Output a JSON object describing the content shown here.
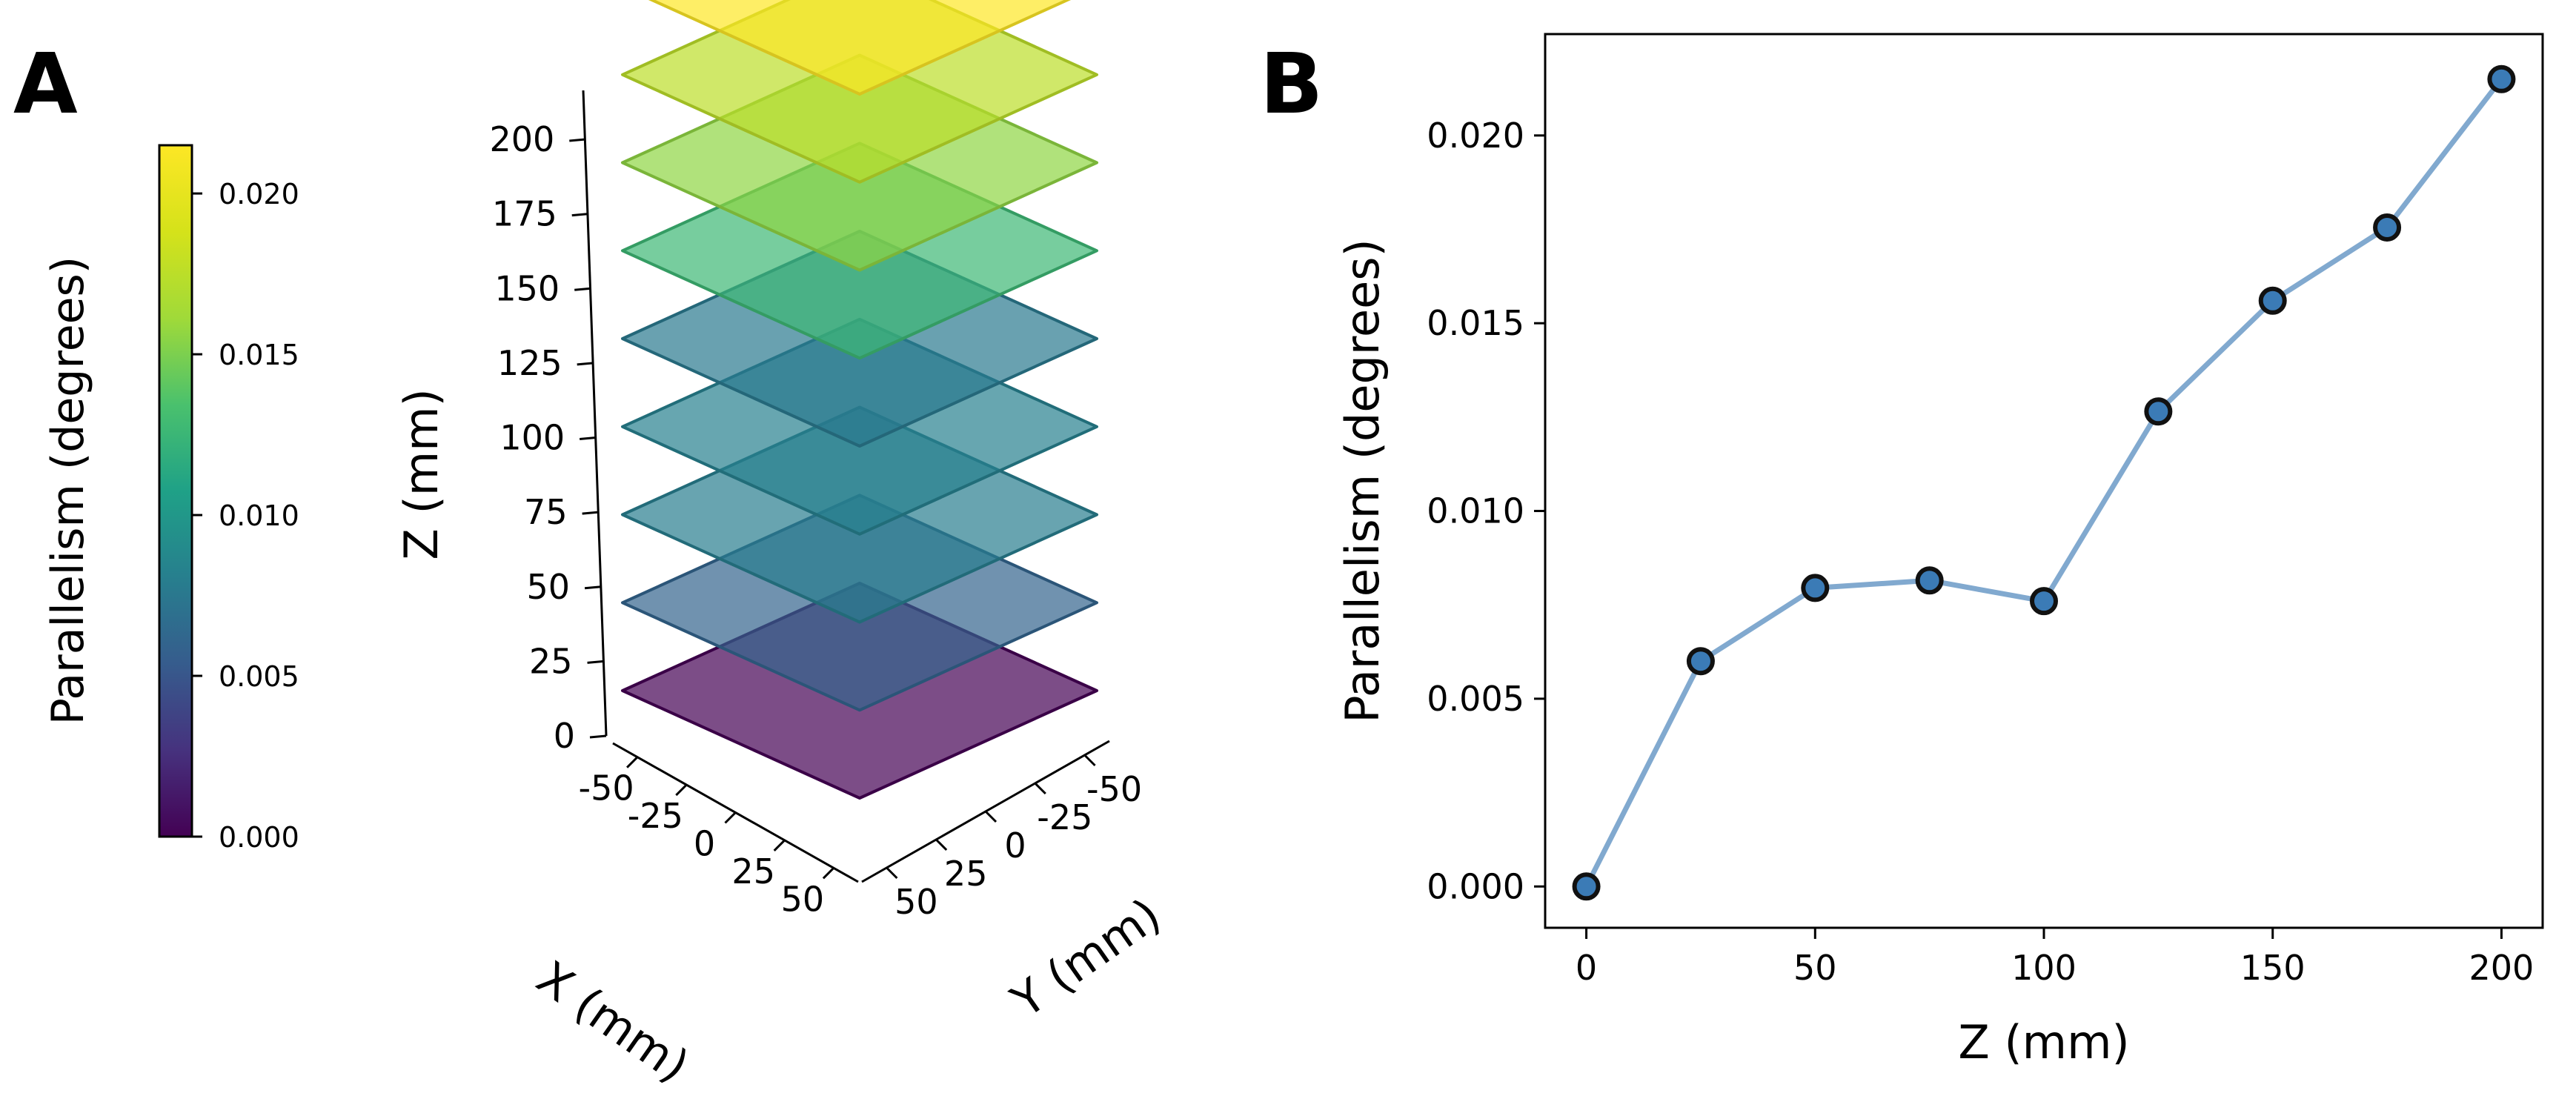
{
  "panels": {
    "a_label": "A",
    "b_label": "B"
  },
  "chart_data": [
    {
      "type": "3d-surface-stack",
      "panel": "A",
      "title": "",
      "xlabel": "X (mm)",
      "ylabel": "Y (mm)",
      "zlabel": "Z (mm)",
      "x_ticks": [
        "-50",
        "-25",
        "0",
        "25",
        "50"
      ],
      "y_ticks": [
        "-50",
        "-25",
        "0",
        "25",
        "50"
      ],
      "z_ticks": [
        "0",
        "25",
        "50",
        "75",
        "100",
        "125",
        "150",
        "175",
        "200"
      ],
      "xlim": [
        -50,
        50
      ],
      "ylim": [
        -50,
        50
      ],
      "zlim": [
        0,
        200
      ],
      "planes": [
        {
          "z": 0,
          "parallelism": 0.0
        },
        {
          "z": 25,
          "parallelism": 0.006
        },
        {
          "z": 50,
          "parallelism": 0.00795
        },
        {
          "z": 75,
          "parallelism": 0.00815
        },
        {
          "z": 100,
          "parallelism": 0.0076
        },
        {
          "z": 125,
          "parallelism": 0.01265
        },
        {
          "z": 150,
          "parallelism": 0.0156
        },
        {
          "z": 175,
          "parallelism": 0.01755
        },
        {
          "z": 200,
          "parallelism": 0.0215
        }
      ],
      "colorbar": {
        "label": "Parallelism (degrees)",
        "range": [
          0.0,
          0.0215
        ],
        "ticks": [
          0.0,
          0.005,
          0.01,
          0.015,
          0.02
        ],
        "tick_labels": [
          "0.000",
          "0.005",
          "0.010",
          "0.015",
          "0.020"
        ],
        "colormap": "viridis"
      }
    },
    {
      "type": "line",
      "panel": "B",
      "title": "",
      "xlabel": "Z (mm)",
      "ylabel": "Parallelism (degrees)",
      "x": [
        0,
        25,
        50,
        75,
        100,
        125,
        150,
        175,
        200
      ],
      "series": [
        {
          "name": "Parallelism",
          "values": [
            0.0,
            0.006,
            0.00795,
            0.00815,
            0.0076,
            0.01265,
            0.0156,
            0.01755,
            0.0215
          ]
        }
      ],
      "xlim": [
        -9,
        209
      ],
      "ylim": [
        -0.0011,
        0.0227
      ],
      "x_ticks": [
        0,
        50,
        100,
        150,
        200
      ],
      "x_tick_labels": [
        "0",
        "50",
        "100",
        "150",
        "200"
      ],
      "y_ticks": [
        0.0,
        0.005,
        0.01,
        0.015,
        0.02
      ],
      "y_tick_labels": [
        "0.000",
        "0.005",
        "0.010",
        "0.015",
        "0.020"
      ],
      "line_color": "#81a9cf",
      "marker_color": "#3b7bb6",
      "marker_edge": "#111111",
      "grid": false
    }
  ]
}
